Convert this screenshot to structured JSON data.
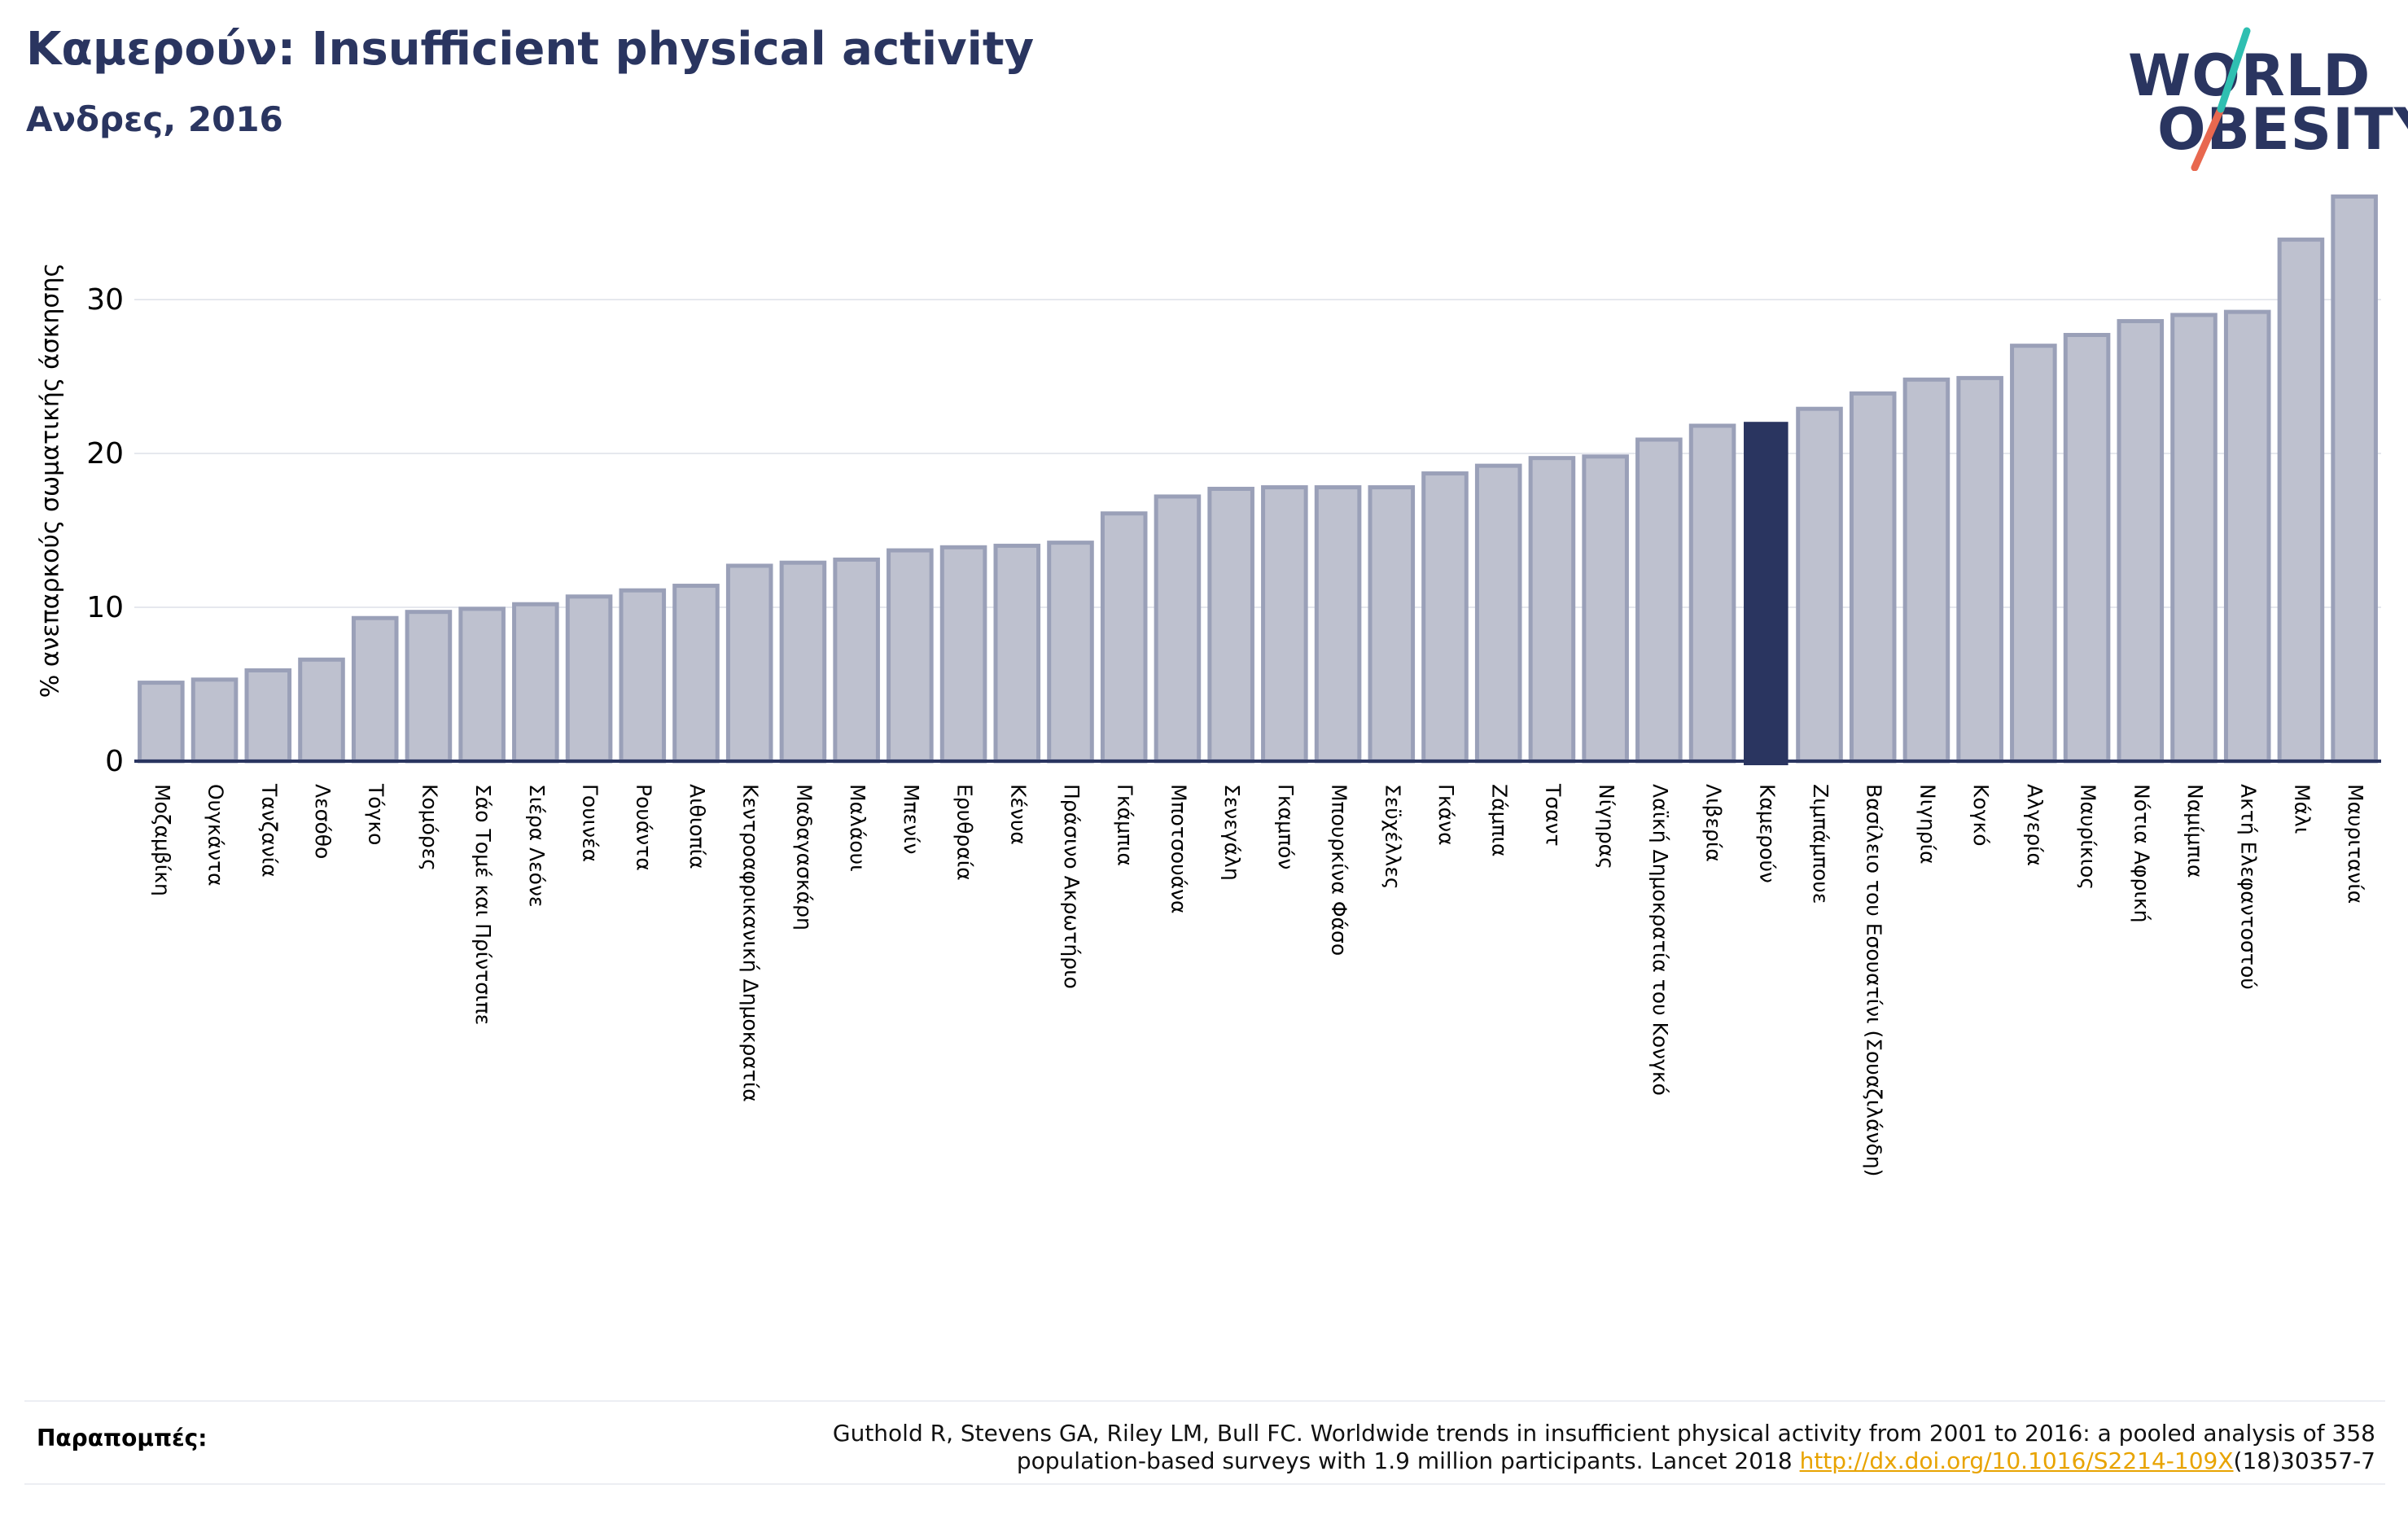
{
  "header": {
    "title": "Καμερούν: Insufficient physical activity",
    "subtitle": "Ανδρες, 2016"
  },
  "logo": {
    "line1": "WORLD",
    "line2": "OBESITY",
    "colors": {
      "text": "#2a3560",
      "slash_top": "#2fbfb1",
      "slash_bottom": "#e8684f"
    }
  },
  "colors": {
    "bar_fill": "#bec1cf",
    "bar_stroke": "#9aa0b8",
    "highlight": "#2a3560",
    "grid": "#e6e8ee",
    "axis": "#2a3560",
    "link": "#e8a300"
  },
  "chart_data": {
    "type": "bar",
    "title": "Καμερούν: Insufficient physical activity",
    "subtitle": "Ανδρες, 2016",
    "xlabel": "",
    "ylabel": "% ανεπαρκούς σωματικής άσκησης",
    "ylim": [
      0,
      37
    ],
    "yticks": [
      0,
      10,
      20,
      30
    ],
    "grid": true,
    "highlight": "Καμερούν",
    "categories": [
      "Μοζαμβίκη",
      "Ουγκάντα",
      "Τανζανία",
      "Λεσόθο",
      "Τόγκο",
      "Κομόρες",
      "Σάο Τομέ και Πρίντσιπε",
      "Σιέρα Λεόνε",
      "Γουινέα",
      "Ρουάντα",
      "Αιθιοπία",
      "Κεντροαφρικανική Δημοκρατία",
      "Μαδαγασκάρη",
      "Μαλάουι",
      "Μπενίν",
      "Ερυθραία",
      "Κένυα",
      "Πράσινο Ακρωτήριο",
      "Γκάμπια",
      "Μποτσουάνα",
      "Σενεγάλη",
      "Γκαμπόν",
      "Μπουρκίνα Φάσο",
      "Σεϋχέλλες",
      "Γκάνα",
      "Ζάμπια",
      "Τσαντ",
      "Νίγηρας",
      "Λαϊκή Δημοκρατία του Κονγκό",
      "Λιβερία",
      "Καμερούν",
      "Ζιμπάμπουε",
      "Βασίλειο του Εσουατίνι (Σουαζιλάνδη)",
      "Νιγηρία",
      "Κογκό",
      "Αλγερία",
      "Μαυρίκιος",
      "Νότια Αφρική",
      "Ναμίμπια",
      "Ακτή Ελεφαντοστού",
      "Μάλι",
      "Μαυριτανία"
    ],
    "values": [
      5.1,
      5.3,
      5.9,
      6.6,
      9.3,
      9.7,
      9.9,
      10.2,
      10.7,
      11.1,
      11.4,
      12.7,
      12.9,
      13.1,
      13.7,
      13.9,
      14.0,
      14.2,
      16.1,
      17.2,
      17.7,
      17.8,
      17.8,
      17.8,
      18.7,
      19.2,
      19.7,
      19.8,
      20.9,
      21.8,
      22.0,
      22.9,
      23.9,
      24.8,
      24.9,
      27.0,
      27.7,
      28.6,
      29.0,
      29.2,
      33.9,
      36.7
    ]
  },
  "references": {
    "label": "Παραπομπές:",
    "line1": "Guthold R, Stevens GA, Riley LM, Bull FC. Worldwide trends in insufficient physical activity from 2001 to 2016: a pooled analysis of 358",
    "line2_pre": "population-based surveys with 1.9 million participants. Lancet 2018 ",
    "link": "http://dx.doi.org/10.1016/S2214-109X",
    "line2_post": "(18)30357-7"
  }
}
